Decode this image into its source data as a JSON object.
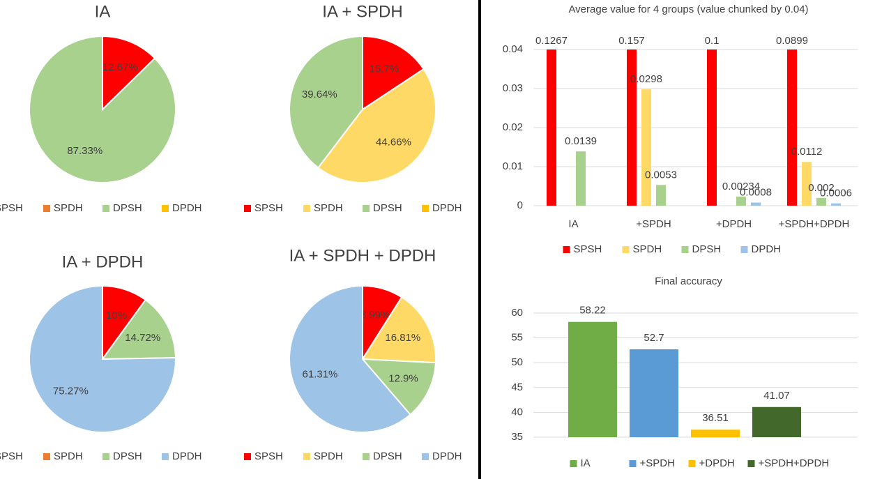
{
  "chart_data": [
    {
      "type": "pie",
      "title": "IA",
      "categories": [
        "SPSH",
        "SPDH",
        "DPSH",
        "DPDH"
      ],
      "values": [
        12.67,
        0,
        87.33,
        0
      ],
      "value_labels": [
        "12.67%",
        null,
        "87.33%",
        null
      ],
      "colors": [
        "#ff0000",
        "#ed7d31",
        "#a9d18e",
        "#ffc000"
      ]
    },
    {
      "type": "pie",
      "title": "IA + SPDH",
      "categories": [
        "SPSH",
        "SPDH",
        "DPSH",
        "DPDH"
      ],
      "values": [
        15.7,
        44.66,
        39.64,
        0
      ],
      "value_labels": [
        "15.7%",
        "44.66%",
        "39.64%",
        null
      ],
      "colors": [
        "#ff0000",
        "#ffd966",
        "#a9d18e",
        "#ffc000"
      ]
    },
    {
      "type": "pie",
      "title": "IA + DPDH",
      "categories": [
        "SPSH",
        "SPDH",
        "DPSH",
        "DPDH"
      ],
      "values": [
        10,
        0,
        14.72,
        75.27
      ],
      "value_labels": [
        "10%",
        null,
        "14.72%",
        "75.27%"
      ],
      "colors": [
        "#ff0000",
        "#ed7d31",
        "#a9d18e",
        "#9dc3e6"
      ]
    },
    {
      "type": "pie",
      "title": "IA + SPDH + DPDH",
      "categories": [
        "SPSH",
        "SPDH",
        "DPSH",
        "DPDH"
      ],
      "values": [
        8.99,
        16.81,
        12.9,
        61.31
      ],
      "value_labels": [
        "8.99%",
        "16.81%",
        "12.9%",
        "61.31%"
      ],
      "colors": [
        "#ff0000",
        "#ffd966",
        "#a9d18e",
        "#9dc3e6"
      ]
    },
    {
      "type": "groupbar",
      "title": "Average value for 4 groups (value chunked by 0.04)",
      "categories": [
        "IA",
        "+SPDH",
        "+DPDH",
        "+SPDH+DPDH"
      ],
      "series": [
        {
          "name": "SPSH",
          "color": "#ff0000",
          "values": [
            0.1267,
            0.157,
            0.1,
            0.0899
          ]
        },
        {
          "name": "SPDH",
          "color": "#ffd966",
          "values": [
            null,
            0.0298,
            null,
            0.0112
          ]
        },
        {
          "name": "DPSH",
          "color": "#a9d18e",
          "values": [
            0.0139,
            0.0053,
            0.00234,
            0.002
          ]
        },
        {
          "name": "DPDH",
          "color": "#9dc3e6",
          "values": [
            null,
            null,
            0.0008,
            0.0006
          ]
        }
      ],
      "ylim": [
        0,
        0.04
      ],
      "yticks": [
        0,
        0.01,
        0.02,
        0.03,
        0.04
      ],
      "grid": true
    },
    {
      "type": "bar",
      "title": "Final accuracy",
      "categories": [
        "IA",
        "+SPDH",
        "+DPDH",
        "+SPDH+DPDH"
      ],
      "values": [
        58.22,
        52.7,
        36.51,
        41.07
      ],
      "colors": [
        "#70ad47",
        "#5b9bd5",
        "#ffc000",
        "#43682b"
      ],
      "ylim": [
        35,
        60
      ],
      "yticks": [
        35,
        40,
        45,
        50,
        55,
        60
      ],
      "grid": true
    }
  ]
}
